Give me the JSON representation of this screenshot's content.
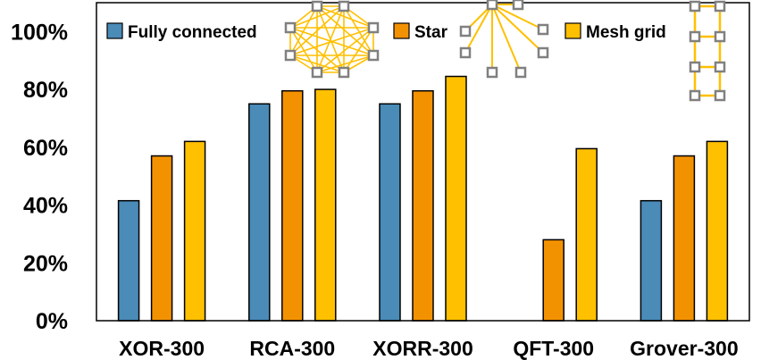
{
  "chart_data": {
    "type": "bar",
    "categories": [
      "XOR-300",
      "RCA-300",
      "XORR-300",
      "QFT-300",
      "Grover-300"
    ],
    "series": [
      {
        "name": "Fully connected",
        "color": "#4a8bb8",
        "values": [
          41.5,
          75,
          75,
          null,
          41.5
        ]
      },
      {
        "name": "Star",
        "color": "#f39200",
        "values": [
          57,
          79.5,
          79.5,
          28,
          57
        ]
      },
      {
        "name": "Mesh grid",
        "color": "#ffc000",
        "values": [
          62,
          80,
          84.5,
          59.5,
          62
        ]
      }
    ],
    "yticks": [
      "0%",
      "20%",
      "40%",
      "60%",
      "80%",
      "100%"
    ],
    "ylim": [
      0,
      110
    ],
    "legend_position": "top",
    "grid": false,
    "icons": [
      "fully-connected-topology-icon",
      "star-topology-icon",
      "mesh-grid-topology-icon"
    ],
    "icon_color": "#ffc000",
    "node_color": "#808080"
  }
}
